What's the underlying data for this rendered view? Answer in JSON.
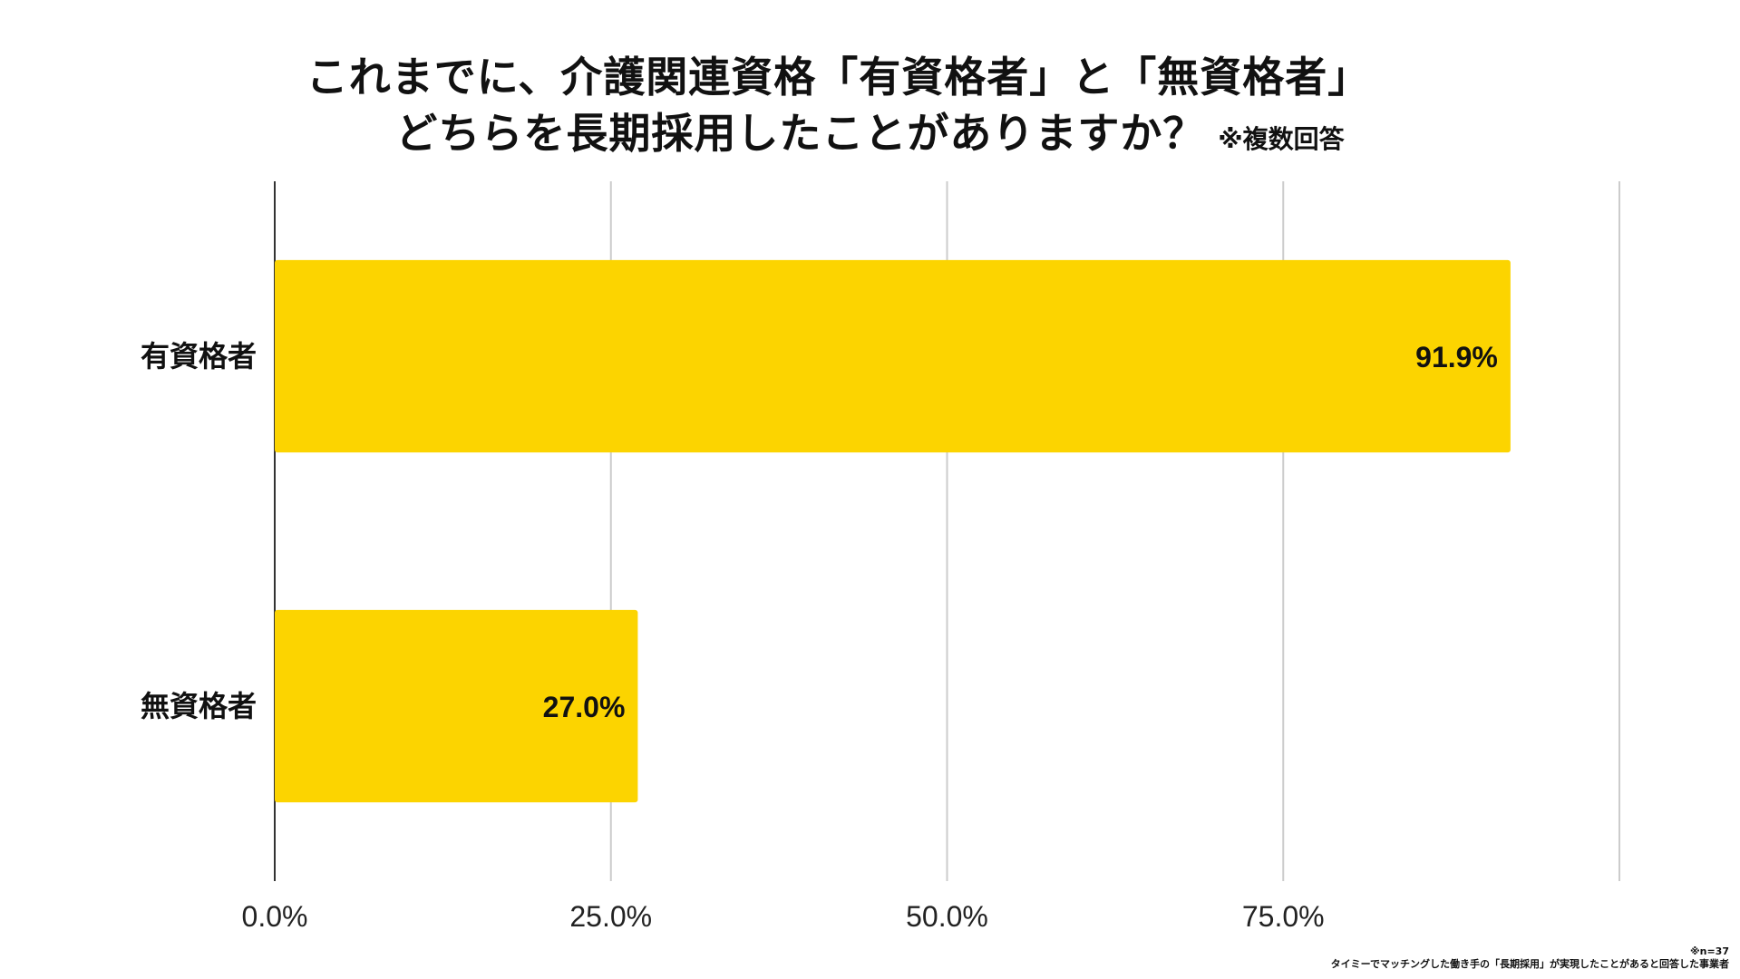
{
  "title": {
    "line1": "これまでに、介護関連資格「有資格者」と「無資格者」",
    "line2": "どちらを長期採用したことがありますか？",
    "note": "※複数回答"
  },
  "chart_data": {
    "type": "bar",
    "orientation": "horizontal",
    "categories": [
      "有資格者",
      "無資格者"
    ],
    "values": [
      91.9,
      27.0
    ],
    "value_labels": [
      "91.9%",
      "27.0%"
    ],
    "xlim": [
      0,
      100
    ],
    "x_ticks": [
      0,
      25,
      50,
      75,
      100
    ],
    "x_tick_labels": [
      "0.0%",
      "25.0%",
      "50.0%",
      "75.0%",
      ""
    ],
    "grid": true,
    "bar_color": "#FCD400"
  },
  "footnote": {
    "n": "※n=37",
    "description": "タイミーでマッチングした働き手の「長期採用」が実現したことがあると回答した事業者"
  }
}
